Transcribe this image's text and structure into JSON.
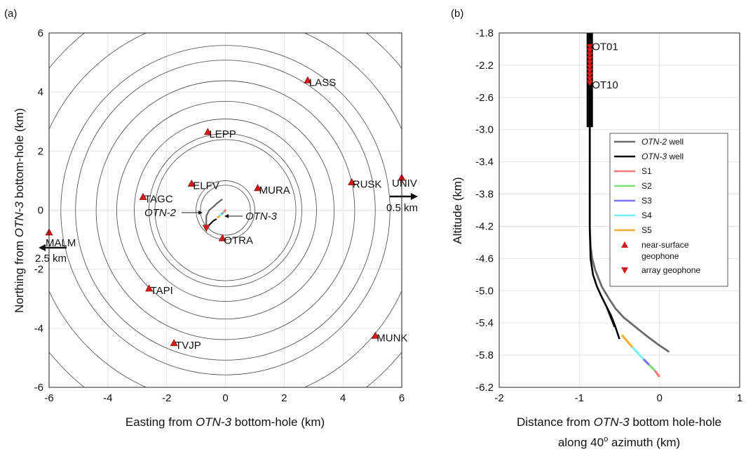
{
  "chart_data": [
    {
      "type": "scatter",
      "panel_label": "(a)",
      "xlabel_pre": "Easting from ",
      "xlabel_em": "OTN-3",
      "xlabel_post": " bottom-hole (km)",
      "ylabel_pre": "Northing from ",
      "ylabel_em": "OTN-3",
      "ylabel_post": " bottom-hole (km)",
      "xlim": [
        -6,
        6
      ],
      "ylim": [
        -6,
        6
      ],
      "xticks": [
        -6,
        -4,
        -2,
        0,
        2,
        4,
        6
      ],
      "yticks": [
        -6,
        -4,
        -2,
        0,
        2,
        4,
        6
      ],
      "grid": true,
      "circle_radii_km": [
        0.85,
        1.0,
        2.4,
        2.6,
        3.1,
        3.7,
        4.4,
        5.1,
        5.6,
        6.6,
        7.7
      ],
      "stations": [
        {
          "name": "LASS",
          "x": 2.8,
          "y": 4.4
        },
        {
          "name": "LEPP",
          "x": -0.6,
          "y": 2.65
        },
        {
          "name": "ELFV",
          "x": -1.15,
          "y": 0.9
        },
        {
          "name": "MURA",
          "x": 1.1,
          "y": 0.75
        },
        {
          "name": "TAGC",
          "x": -2.8,
          "y": 0.45
        },
        {
          "name": "RUSK",
          "x": 4.3,
          "y": 0.95
        },
        {
          "name": "UNIV",
          "x": 6.0,
          "y": 1.1
        },
        {
          "name": "MALM",
          "x": -6.0,
          "y": -0.75
        },
        {
          "name": "OTRA",
          "x": -0.1,
          "y": -0.95
        },
        {
          "name": "TAPI",
          "x": -2.6,
          "y": -2.65
        },
        {
          "name": "TVJP",
          "x": -1.75,
          "y": -4.5
        },
        {
          "name": "MUNK",
          "x": 5.1,
          "y": -4.25
        }
      ],
      "array_geophone": {
        "x": -0.65,
        "y": -0.6
      },
      "wells": [
        {
          "name": "OTN-2",
          "x": [
            -0.65,
            -0.65,
            -0.55,
            -0.4,
            -0.3,
            -0.2,
            -0.1
          ],
          "y": [
            -0.6,
            -0.2,
            0.0,
            0.12,
            0.22,
            0.3,
            0.37
          ]
        },
        {
          "name": "OTN-3",
          "x": [
            -0.65,
            -0.55,
            -0.4,
            -0.3
          ],
          "y": [
            -0.6,
            -0.5,
            -0.35,
            -0.3
          ]
        }
      ],
      "segments": [
        {
          "name": "S1",
          "color": "#f87878",
          "x": [
            0.02,
            -0.04
          ],
          "y": [
            0.02,
            -0.05
          ]
        },
        {
          "name": "S2",
          "color": "#78e078",
          "x": [
            -0.04,
            -0.1
          ],
          "y": [
            -0.05,
            -0.1
          ]
        },
        {
          "name": "S3",
          "color": "#7878f0",
          "x": [
            -0.1,
            -0.13
          ],
          "y": [
            -0.1,
            -0.13
          ]
        },
        {
          "name": "S4",
          "color": "#78f0f0",
          "x": [
            -0.13,
            -0.2
          ],
          "y": [
            -0.13,
            -0.19
          ]
        },
        {
          "name": "S5",
          "color": "#f0b030",
          "x": [
            -0.2,
            -0.28
          ],
          "y": [
            -0.19,
            -0.26
          ]
        }
      ],
      "annotations": {
        "otn2_label": "OTN-2",
        "otn3_label": "OTN-3",
        "univ_dist": "0.5 km",
        "malm_dist": "2.5 km"
      }
    },
    {
      "type": "line",
      "panel_label": "(b)",
      "xlabel_line1_pre": "Distance from ",
      "xlabel_line1_em": "OTN-3",
      "xlabel_line1_post": " bottom hole-hole",
      "xlabel_line2_pre": "along 40",
      "xlabel_line2_sup": "o",
      "xlabel_line2_post": " azimuth (km)",
      "ylabel": "Altitude (km)",
      "xlim": [
        -2,
        1
      ],
      "ylim": [
        -6.2,
        -1.8
      ],
      "xticks": [
        -2,
        -1,
        0,
        1
      ],
      "yticks": [
        -1.8,
        -2.2,
        -2.6,
        -3.0,
        -3.4,
        -3.8,
        -4.2,
        -4.6,
        -5.0,
        -5.4,
        -5.8,
        -6.2
      ],
      "grid": true,
      "series": [
        {
          "name": "OTN-2 well",
          "color": "#6a6a6a",
          "x": [
            -0.87,
            -0.87,
            -0.86,
            -0.84,
            -0.8,
            -0.72,
            -0.63,
            -0.55,
            -0.45,
            -0.3,
            -0.15,
            0.0,
            0.12
          ],
          "y": [
            -1.8,
            -4.2,
            -4.45,
            -4.6,
            -4.75,
            -4.95,
            -5.1,
            -5.22,
            -5.33,
            -5.45,
            -5.57,
            -5.68,
            -5.76
          ]
        },
        {
          "name": "OTN-3 well",
          "color": "#000000",
          "x": [
            -0.87,
            -0.87,
            -0.86,
            -0.83,
            -0.78,
            -0.72,
            -0.66,
            -0.6,
            -0.55,
            -0.5
          ],
          "y": [
            -1.8,
            -4.25,
            -4.6,
            -4.8,
            -4.95,
            -5.08,
            -5.2,
            -5.32,
            -5.45,
            -5.6
          ]
        },
        {
          "name": "OTN-3 branch",
          "color": "#000000",
          "x": [
            -0.66,
            -0.6,
            -0.56
          ],
          "y": [
            -5.2,
            -5.35,
            -5.45
          ]
        },
        {
          "name": "S1",
          "color": "#f87878",
          "x": [
            -0.06,
            0.0
          ],
          "y": [
            -5.99,
            -6.07
          ]
        },
        {
          "name": "S2",
          "color": "#78e078",
          "x": [
            -0.13,
            -0.06
          ],
          "y": [
            -5.92,
            -5.99
          ]
        },
        {
          "name": "S3",
          "color": "#7878f0",
          "x": [
            -0.2,
            -0.13
          ],
          "y": [
            -5.85,
            -5.92
          ]
        },
        {
          "name": "S4",
          "color": "#78f0f0",
          "x": [
            -0.34,
            -0.2
          ],
          "y": [
            -5.7,
            -5.85
          ]
        },
        {
          "name": "S5",
          "color": "#f0b030",
          "x": [
            -0.47,
            -0.34
          ],
          "y": [
            -5.55,
            -5.7
          ]
        }
      ],
      "thick_casing": {
        "x": -0.87,
        "y_top": -1.8,
        "y_bottom": -2.97
      },
      "array_geophones": [
        {
          "x": -0.87,
          "y": -1.97
        },
        {
          "x": -0.87,
          "y": -2.02
        },
        {
          "x": -0.87,
          "y": -2.07
        },
        {
          "x": -0.87,
          "y": -2.12
        },
        {
          "x": -0.87,
          "y": -2.17
        },
        {
          "x": -0.87,
          "y": -2.22
        },
        {
          "x": -0.87,
          "y": -2.27
        },
        {
          "x": -0.87,
          "y": -2.32
        },
        {
          "x": -0.87,
          "y": -2.37
        },
        {
          "x": -0.87,
          "y": -2.42
        }
      ],
      "annotations": {
        "top": "OT01",
        "bottom": "OT10"
      },
      "legend": {
        "placement": "right",
        "entries": [
          {
            "em": "OTN-2",
            "text": " well",
            "color": "#6a6a6a",
            "kind": "line"
          },
          {
            "em": "OTN-3",
            "text": " well",
            "color": "#000000",
            "kind": "line"
          },
          {
            "em": "",
            "text": "S1",
            "color": "#f87878",
            "kind": "line"
          },
          {
            "em": "",
            "text": "S2",
            "color": "#78e078",
            "kind": "line"
          },
          {
            "em": "",
            "text": "S3",
            "color": "#7878f0",
            "kind": "line"
          },
          {
            "em": "",
            "text": "S4",
            "color": "#78f0f0",
            "kind": "line"
          },
          {
            "em": "",
            "text": "S5",
            "color": "#f0b030",
            "kind": "line"
          },
          {
            "em": "",
            "text": "near-surface",
            "text2": "geophone",
            "color": "#d41a1a",
            "kind": "tri-up"
          },
          {
            "em": "",
            "text": "array geophone",
            "color": "#d41a1a",
            "kind": "tri-down"
          }
        ]
      }
    }
  ]
}
